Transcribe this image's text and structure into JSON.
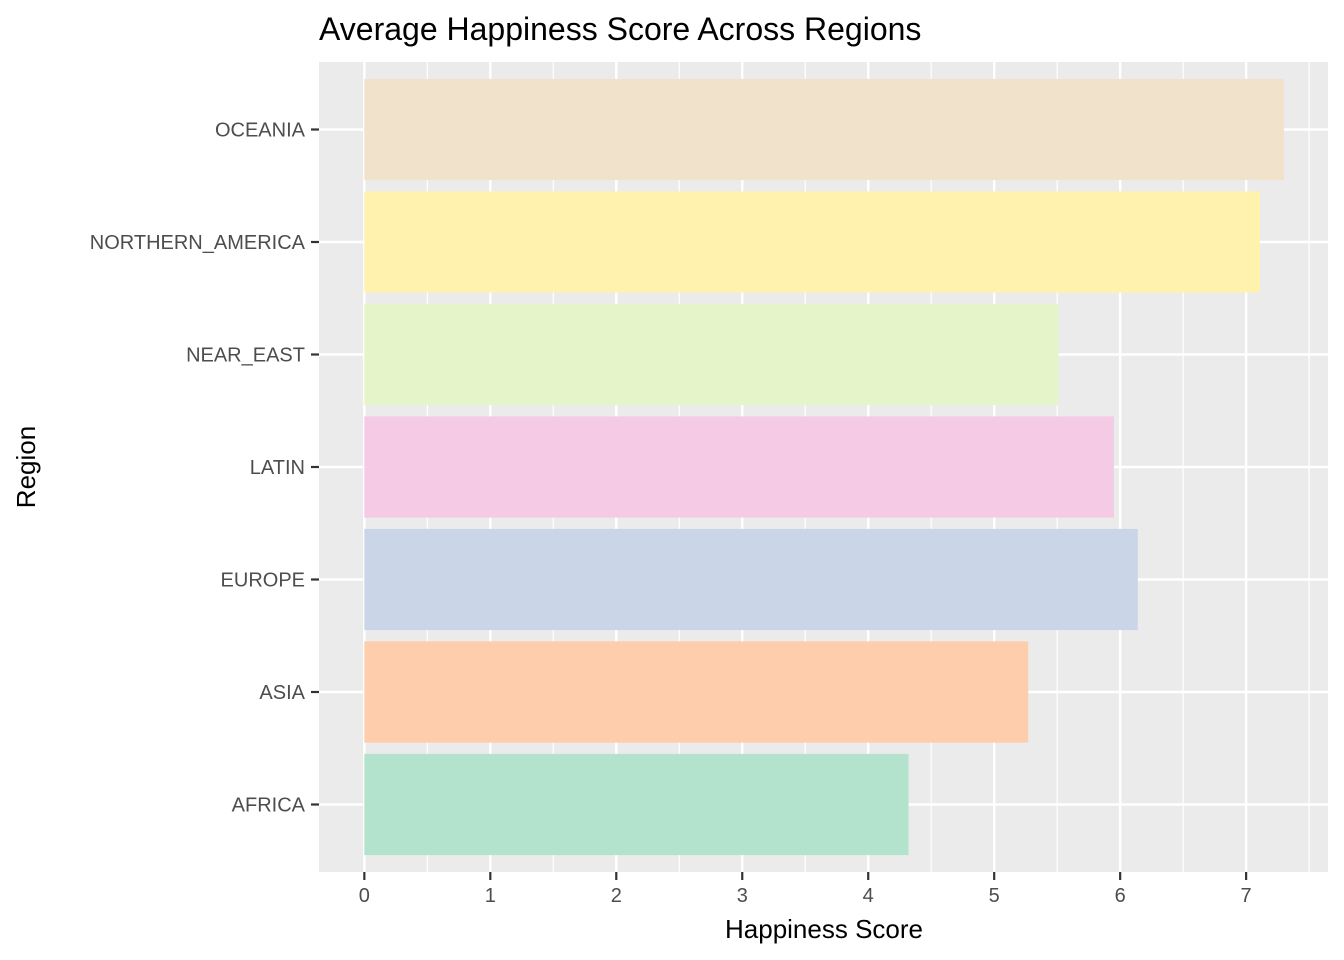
{
  "chart_data": {
    "type": "bar",
    "orientation": "horizontal",
    "title": "Average Happiness Score Across Regions",
    "xlabel": "Happiness Score",
    "ylabel": "Region",
    "categories": [
      "AFRICA",
      "ASIA",
      "EUROPE",
      "LATIN",
      "NEAR_EAST",
      "NORTHERN_AMERICA",
      "OCEANIA"
    ],
    "values": [
      4.32,
      5.27,
      6.14,
      5.95,
      5.51,
      7.11,
      7.3
    ],
    "colors": [
      "#b3e2cd",
      "#fdcdac",
      "#cbd5e8",
      "#f4cae4",
      "#e6f5c9",
      "#fff2ae",
      "#f1e2cc"
    ],
    "xlim": [
      -0.36,
      7.65
    ],
    "xticks": [
      0,
      1,
      2,
      3,
      4,
      5,
      6,
      7
    ],
    "grid": true,
    "legend": "none",
    "panel_background": "#ebebeb",
    "grid_color": "#ffffff"
  }
}
